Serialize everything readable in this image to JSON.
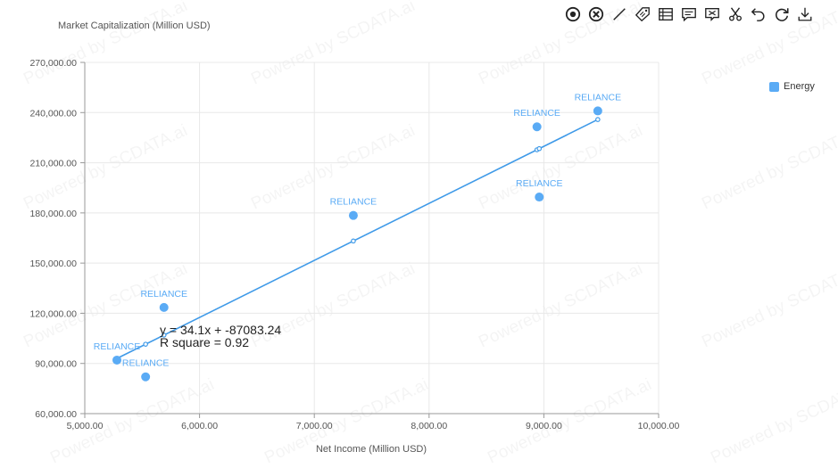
{
  "toolbar": {
    "tools": [
      {
        "name": "focus-icon",
        "title": "Focus"
      },
      {
        "name": "clear-icon",
        "title": "Clear"
      },
      {
        "name": "line-icon",
        "title": "Trendline"
      },
      {
        "name": "tag-icon",
        "title": "Labels"
      },
      {
        "name": "table-icon",
        "title": "Data View"
      },
      {
        "name": "comment-icon",
        "title": "Comment"
      },
      {
        "name": "flag-comment-icon",
        "title": "Annotation"
      },
      {
        "name": "scissors-icon",
        "title": "Cut"
      },
      {
        "name": "undo-icon",
        "title": "Undo"
      },
      {
        "name": "refresh-icon",
        "title": "Refresh"
      },
      {
        "name": "download-icon",
        "title": "Download"
      }
    ]
  },
  "watermark": "Powered by SCDATA.ai",
  "colors": {
    "series": "#5AABF5",
    "trend": "#3F9AE8",
    "grid": "#E8E8E8",
    "axis": "#999999"
  },
  "chart_data": {
    "type": "scatter",
    "title": "",
    "xlabel": "Net Income (Million USD)",
    "ylabel": "Market Capitalization (Million USD)",
    "xlim": [
      5000,
      10000
    ],
    "ylim": [
      60000,
      270000
    ],
    "x_ticks": [
      "5,000.00",
      "6,000.00",
      "7,000.00",
      "8,000.00",
      "9,000.00",
      "10,000.00"
    ],
    "y_ticks": [
      "60,000.00",
      "90,000.00",
      "120,000.00",
      "150,000.00",
      "180,000.00",
      "210,000.00",
      "240,000.00",
      "270,000.00"
    ],
    "grid": true,
    "legend_position": "right",
    "series": [
      {
        "name": "Energy",
        "points": [
          {
            "x": 5280,
            "y": 92000,
            "label": "RELIANCE"
          },
          {
            "x": 5530,
            "y": 82000,
            "label": "RELIANCE"
          },
          {
            "x": 5690,
            "y": 123500,
            "label": "RELIANCE"
          },
          {
            "x": 7340,
            "y": 178500,
            "label": "RELIANCE"
          },
          {
            "x": 8940,
            "y": 231500,
            "label": "RELIANCE"
          },
          {
            "x": 8960,
            "y": 189500,
            "label": "RELIANCE"
          },
          {
            "x": 9470,
            "y": 241000,
            "label": "RELIANCE"
          }
        ]
      }
    ],
    "trendline": {
      "slope": 34.1,
      "intercept": -87083.24,
      "equation": "y = 34.1x + -87083.24",
      "r_squared": "R square = 0.92"
    }
  }
}
